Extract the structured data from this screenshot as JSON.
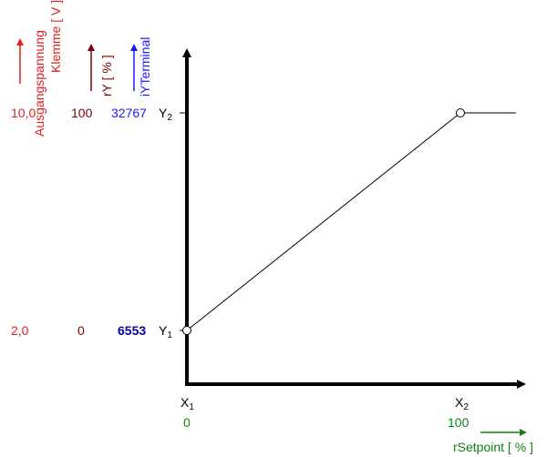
{
  "left_labels": {
    "output_voltage": "Ausgangspannung",
    "terminal": "Klemme [ V ]",
    "ry": "rY [ % ]",
    "iy": "iYTerminal"
  },
  "rows": [
    {
      "voltage": "10,0",
      "ry": "100",
      "iy": "32767",
      "point": "Y",
      "index": "2"
    },
    {
      "voltage": "2,0",
      "ry": "0",
      "iy": "6553",
      "point": "Y",
      "index": "1"
    }
  ],
  "x_points": [
    {
      "point": "X",
      "index": "1",
      "value": "0"
    },
    {
      "point": "X",
      "index": "2",
      "value": "100"
    }
  ],
  "x_axis_label": "rSetpoint [ % ]"
}
